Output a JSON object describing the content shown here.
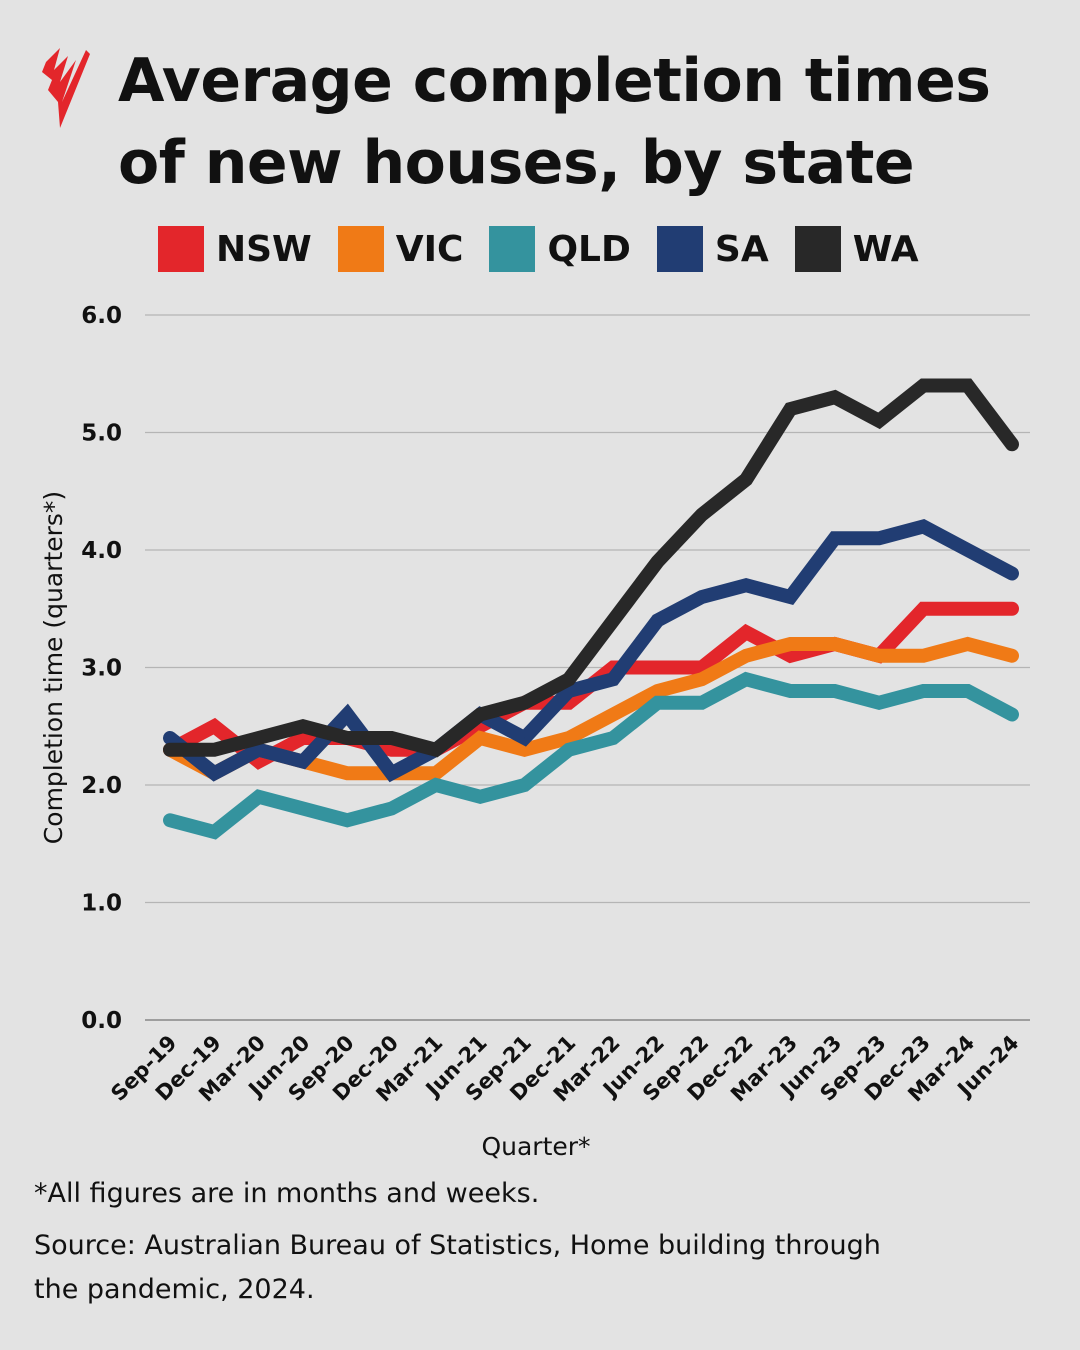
{
  "title_line1": "Average completion times",
  "title_line2": "of new houses, by state",
  "logo_text": "SBS",
  "notes": {
    "footnote": "*All figures are in months and weeks.",
    "source_line1": "Source: Australian Bureau of Statistics, Home building through",
    "source_line2": "the pandemic, 2024."
  },
  "chart_data": {
    "type": "line",
    "title": "Average completion times of new houses, by state",
    "xlabel": "Quarter*",
    "ylabel": "Completion time (quarters*)",
    "ylim": [
      0,
      6
    ],
    "yticks": [
      "0.0",
      "1.0",
      "2.0",
      "3.0",
      "4.0",
      "5.0",
      "6.0"
    ],
    "grid": true,
    "legend": "top",
    "categories": [
      "Sep-19",
      "Dec-19",
      "Mar-20",
      "Jun-20",
      "Sep-20",
      "Dec-20",
      "Mar-21",
      "Jun-21",
      "Sep-21",
      "Dec-21",
      "Mar-22",
      "Jun-22",
      "Sep-22",
      "Dec-22",
      "Mar-23",
      "Jun-23",
      "Sep-23",
      "Dec-23",
      "Mar-24",
      "Jun-24"
    ],
    "series": [
      {
        "name": "NSW",
        "color": "#e3262b",
        "values": [
          2.3,
          2.5,
          2.2,
          2.4,
          2.4,
          2.3,
          2.3,
          2.5,
          2.7,
          2.7,
          3.0,
          3.0,
          3.0,
          3.3,
          3.1,
          3.2,
          3.1,
          3.5,
          3.5,
          3.5
        ]
      },
      {
        "name": "VIC",
        "color": "#f07a16",
        "values": [
          2.3,
          2.1,
          2.3,
          2.2,
          2.1,
          2.1,
          2.1,
          2.4,
          2.3,
          2.4,
          2.6,
          2.8,
          2.9,
          3.1,
          3.2,
          3.2,
          3.1,
          3.1,
          3.2,
          3.1
        ]
      },
      {
        "name": "QLD",
        "color": "#34939e",
        "values": [
          1.7,
          1.6,
          1.9,
          1.8,
          1.7,
          1.8,
          2.0,
          1.9,
          2.0,
          2.3,
          2.4,
          2.7,
          2.7,
          2.9,
          2.8,
          2.8,
          2.7,
          2.8,
          2.8,
          2.6
        ]
      },
      {
        "name": "SA",
        "color": "#213d73",
        "values": [
          2.4,
          2.1,
          2.3,
          2.2,
          2.6,
          2.1,
          2.3,
          2.6,
          2.4,
          2.8,
          2.9,
          3.4,
          3.6,
          3.7,
          3.6,
          4.1,
          4.1,
          4.2,
          4.0,
          3.8
        ]
      },
      {
        "name": "WA",
        "color": "#282828",
        "values": [
          2.3,
          2.3,
          2.4,
          2.5,
          2.4,
          2.4,
          2.3,
          2.6,
          2.7,
          2.9,
          3.4,
          3.9,
          4.3,
          4.6,
          5.2,
          5.3,
          5.1,
          5.4,
          5.4,
          4.9
        ]
      }
    ]
  }
}
